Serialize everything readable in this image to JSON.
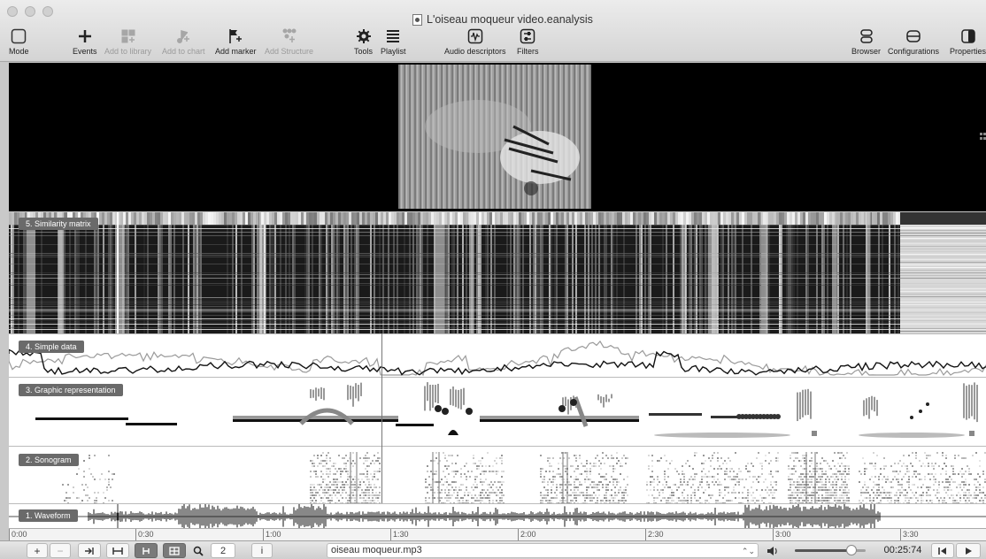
{
  "window": {
    "title": "L'oiseau moqueur video.eanalysis"
  },
  "toolbar": {
    "mode": "Mode",
    "events": "Events",
    "add_to_library": "Add to library",
    "add_to_chart": "Add to chart",
    "add_marker": "Add marker",
    "add_structure": "Add Structure",
    "tools": "Tools",
    "playlist": "Playlist",
    "audio_descriptors": "Audio descriptors",
    "filters": "Filters",
    "browser": "Browser",
    "configurations": "Configurations",
    "properties": "Properties"
  },
  "tracks": {
    "similarity": "5. Similarity matrix",
    "simple": "4. Simple data",
    "graphic": "3. Graphic representation",
    "sonogram": "2. Sonogram",
    "waveform": "1. Waveform"
  },
  "ruler": {
    "ticks": [
      "0:00",
      "0:30",
      "1:00",
      "1:30",
      "2:00",
      "2:30",
      "3:00",
      "3:30"
    ]
  },
  "bottom": {
    "plus": "+",
    "minus": "−",
    "zoom_value": "2",
    "info": "i",
    "file": "oiseau moqueur.mp3",
    "time": "00:25:74",
    "volume": 0.8
  },
  "colors": {
    "track_label_bg": "#6a6a6a",
    "toolbar_bg": "#e0e0e0"
  }
}
